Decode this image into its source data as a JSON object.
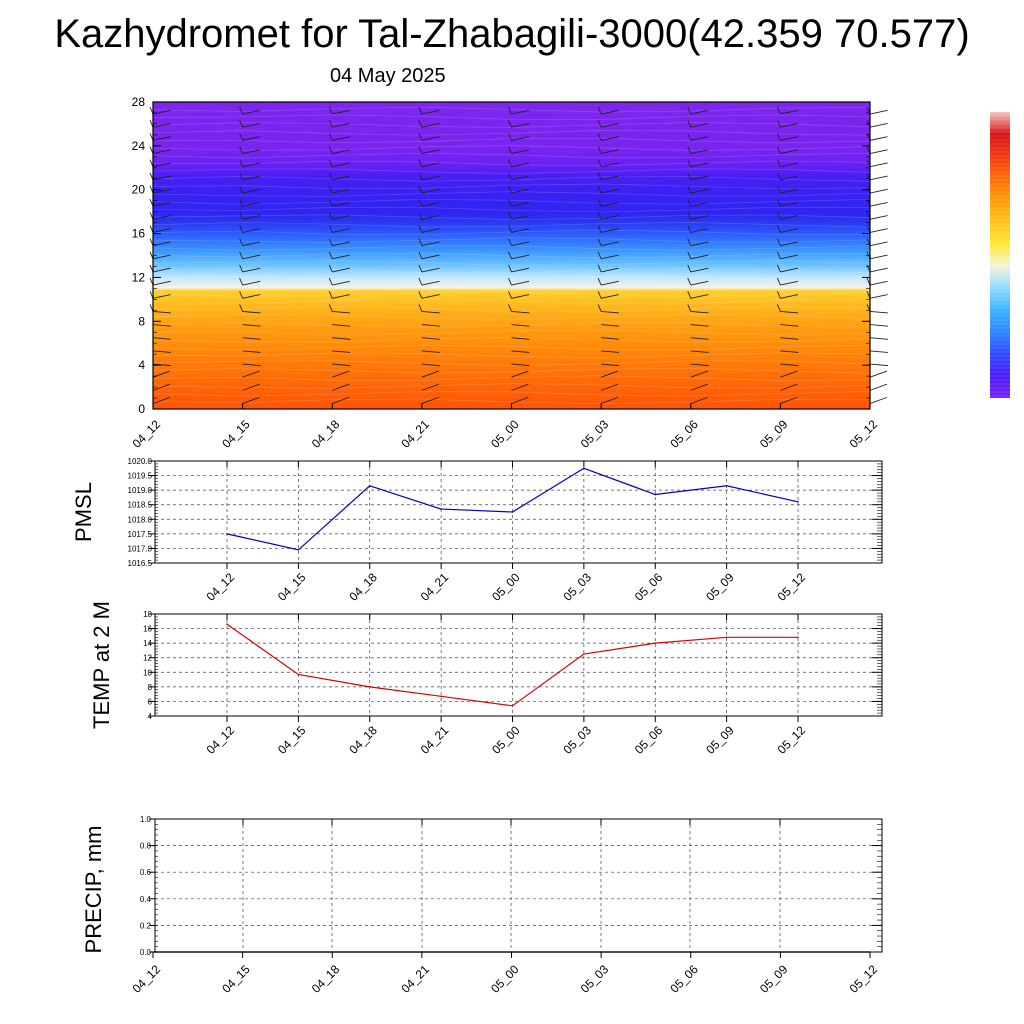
{
  "title": "Kazhydromet for Tal-Zhabagili-3000(42.359 70.577)",
  "date": "04 May 2025",
  "time_labels": [
    "04_12",
    "04_15",
    "04_18",
    "04_21",
    "05_00",
    "05_03",
    "05_06",
    "05_09",
    "05_12"
  ],
  "chart_data": [
    {
      "type": "heatmap",
      "ylim": [
        0,
        28
      ],
      "yticks": [
        "0",
        "4",
        "8",
        "12",
        "16",
        "20",
        "24",
        "28"
      ],
      "x": [
        "04_12",
        "04_15",
        "04_18",
        "04_21",
        "05_00",
        "05_03",
        "05_06",
        "05_09",
        "05_12"
      ],
      "colorbar_colors": [
        "#7a22f0",
        "#4b1cf5",
        "#2f49ff",
        "#2f86ff",
        "#3ab4ff",
        "#8fdcff",
        "#f4f6d8",
        "#ffe933",
        "#ffc21a",
        "#ff9a08",
        "#ff6c08",
        "#f23a10",
        "#d61518",
        "#f6c4c4"
      ],
      "band_colors": [
        "#ff5d08",
        "#ff7a0a",
        "#ff950a",
        "#ffb016",
        "#ffc72a",
        "#ffd83a",
        "#d6ecff",
        "#79ccff",
        "#3aa2ff",
        "#2f6cff",
        "#2b39f4",
        "#3e1cf4",
        "#5a1bf4",
        "#7a22f0"
      ]
    },
    {
      "type": "line",
      "ylabel": "PMSL",
      "ylim": [
        1016.5,
        1020.0
      ],
      "yticks": [
        "1016.5",
        "1017.0",
        "1017.5",
        "1018.0",
        "1018.5",
        "1019.0",
        "1019.5",
        "1020.0"
      ],
      "x": [
        "04_12",
        "04_15",
        "04_18",
        "04_21",
        "05_00",
        "05_03",
        "05_06",
        "05_09",
        "05_12"
      ],
      "series": [
        {
          "values": [
            1017.5,
            1016.95,
            1019.15,
            1018.35,
            1018.25,
            1019.75,
            1018.85,
            1019.15,
            1018.6
          ],
          "color": "#0000cc"
        }
      ]
    },
    {
      "type": "line",
      "ylabel": "TEMP at 2 M",
      "ylim": [
        4,
        18
      ],
      "yticks": [
        "4",
        "6",
        "8",
        "10",
        "12",
        "14",
        "16",
        "18"
      ],
      "x": [
        "04_12",
        "04_15",
        "04_18",
        "04_21",
        "05_00",
        "05_03",
        "05_06",
        "05_09",
        "05_12"
      ],
      "series": [
        {
          "values": [
            16.6,
            9.7,
            8.0,
            6.7,
            5.4,
            12.5,
            14.0,
            14.8,
            14.8
          ],
          "color": "#dd0000"
        }
      ]
    },
    {
      "type": "line",
      "ylabel": "PRECIP, mm",
      "ylim": [
        0.0,
        1.0
      ],
      "yticks": [
        "0.0",
        "0.2",
        "0.4",
        "0.6",
        "0.8",
        "1.0"
      ],
      "x": [
        "04_12",
        "04_15",
        "04_18",
        "04_21",
        "05_00",
        "05_03",
        "05_06",
        "05_09",
        "05_12"
      ],
      "series": [
        {
          "values": [
            0,
            0,
            0,
            0,
            0,
            0,
            0,
            0,
            0
          ],
          "color": "#006400"
        }
      ]
    }
  ]
}
